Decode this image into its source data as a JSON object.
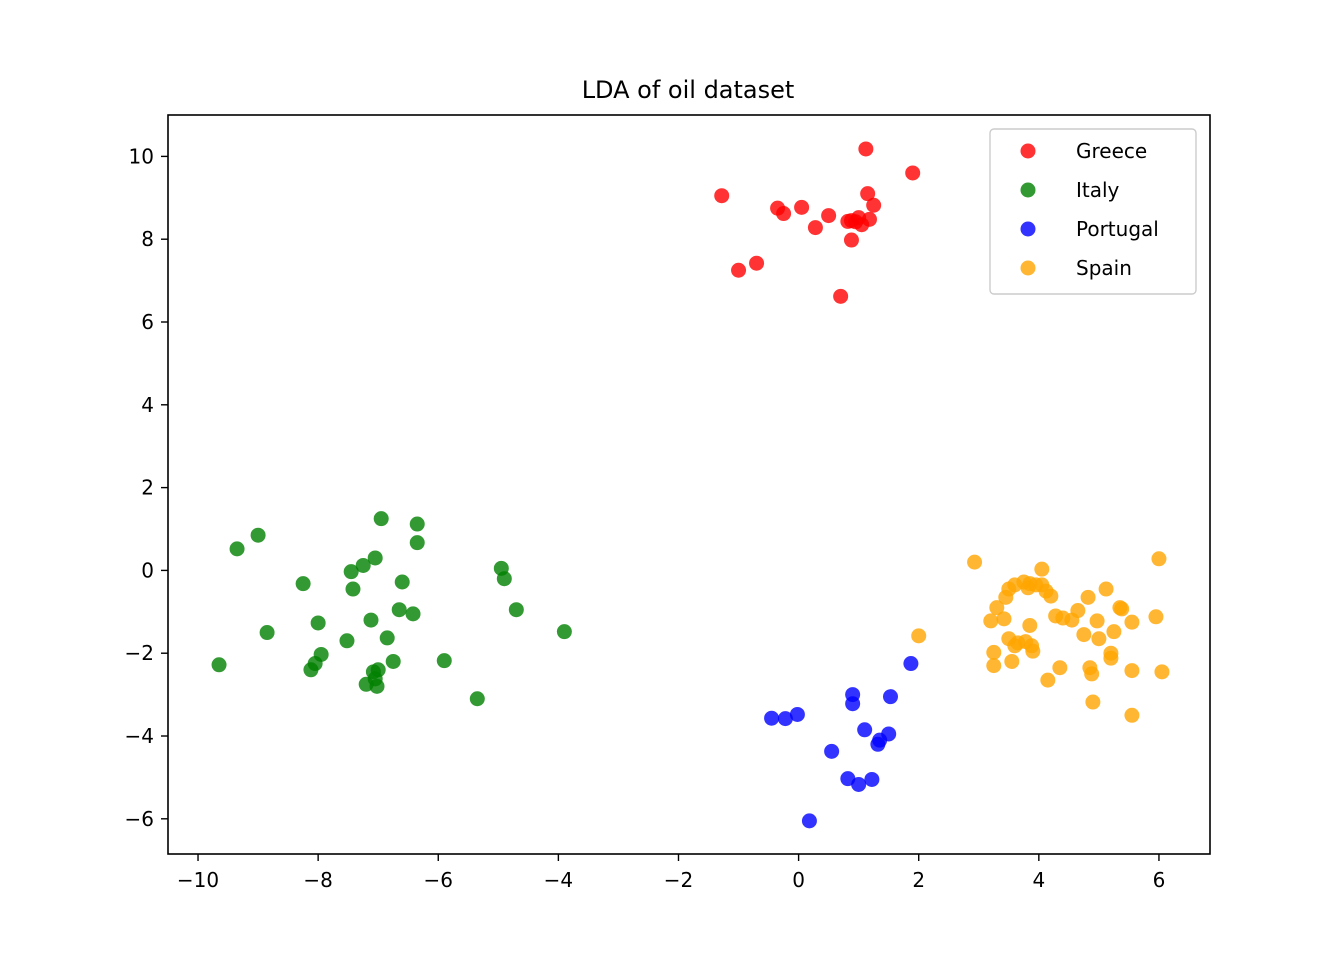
{
  "chart_data": {
    "type": "scatter",
    "title": "LDA of oil dataset",
    "xlabel": "",
    "ylabel": "",
    "xlim": [
      -10.5,
      6.85
    ],
    "ylim": [
      -6.85,
      11.0
    ],
    "xticks": [
      -10,
      -8,
      -6,
      -4,
      -2,
      0,
      2,
      4,
      6
    ],
    "yticks": [
      -6,
      -4,
      -2,
      0,
      2,
      4,
      6,
      8,
      10
    ],
    "xtick_labels": [
      "−10",
      "−8",
      "−6",
      "−4",
      "−2",
      "0",
      "2",
      "4",
      "6"
    ],
    "ytick_labels": [
      "−6",
      "−4",
      "−2",
      "0",
      "2",
      "4",
      "6",
      "8",
      "10"
    ],
    "grid": false,
    "legend_position": "top-right",
    "series": [
      {
        "name": "Greece",
        "color": "#ff0000",
        "points": [
          [
            1.12,
            10.18
          ],
          [
            1.9,
            9.6
          ],
          [
            -1.28,
            9.05
          ],
          [
            1.15,
            9.1
          ],
          [
            -0.35,
            8.75
          ],
          [
            -0.25,
            8.62
          ],
          [
            0.05,
            8.77
          ],
          [
            0.5,
            8.57
          ],
          [
            0.88,
            8.45
          ],
          [
            1.0,
            8.52
          ],
          [
            0.82,
            8.43
          ],
          [
            1.05,
            8.35
          ],
          [
            0.95,
            8.42
          ],
          [
            1.18,
            8.48
          ],
          [
            1.25,
            8.82
          ],
          [
            0.28,
            8.28
          ],
          [
            0.88,
            7.98
          ],
          [
            -0.7,
            7.42
          ],
          [
            -1.0,
            7.25
          ],
          [
            0.7,
            6.62
          ]
        ]
      },
      {
        "name": "Italy",
        "color": "#008000",
        "points": [
          [
            -6.95,
            1.25
          ],
          [
            -6.35,
            1.12
          ],
          [
            -9.0,
            0.85
          ],
          [
            -6.35,
            0.67
          ],
          [
            -9.35,
            0.52
          ],
          [
            -7.05,
            0.3
          ],
          [
            -7.25,
            0.12
          ],
          [
            -7.45,
            -0.03
          ],
          [
            -4.95,
            0.05
          ],
          [
            -4.9,
            -0.2
          ],
          [
            -6.6,
            -0.28
          ],
          [
            -8.25,
            -0.32
          ],
          [
            -7.42,
            -0.45
          ],
          [
            -6.65,
            -0.95
          ],
          [
            -4.7,
            -0.95
          ],
          [
            -6.42,
            -1.05
          ],
          [
            -7.12,
            -1.2
          ],
          [
            -8.0,
            -1.27
          ],
          [
            -8.85,
            -1.5
          ],
          [
            -3.9,
            -1.48
          ],
          [
            -7.52,
            -1.7
          ],
          [
            -6.85,
            -1.63
          ],
          [
            -7.95,
            -2.03
          ],
          [
            -8.05,
            -2.25
          ],
          [
            -5.9,
            -2.18
          ],
          [
            -6.75,
            -2.2
          ],
          [
            -9.65,
            -2.28
          ],
          [
            -7.0,
            -2.4
          ],
          [
            -8.12,
            -2.4
          ],
          [
            -7.08,
            -2.45
          ],
          [
            -7.05,
            -2.62
          ],
          [
            -7.2,
            -2.75
          ],
          [
            -7.02,
            -2.8
          ],
          [
            -5.35,
            -3.1
          ]
        ]
      },
      {
        "name": "Portugal",
        "color": "#0000ff",
        "points": [
          [
            1.87,
            -2.25
          ],
          [
            0.9,
            -3.0
          ],
          [
            1.53,
            -3.05
          ],
          [
            0.9,
            -3.22
          ],
          [
            -0.02,
            -3.48
          ],
          [
            -0.45,
            -3.57
          ],
          [
            -0.22,
            -3.58
          ],
          [
            1.1,
            -3.85
          ],
          [
            1.5,
            -3.95
          ],
          [
            1.35,
            -4.1
          ],
          [
            1.32,
            -4.2
          ],
          [
            0.55,
            -4.37
          ],
          [
            0.82,
            -5.03
          ],
          [
            1.22,
            -5.05
          ],
          [
            1.0,
            -5.17
          ],
          [
            0.18,
            -6.05
          ]
        ]
      },
      {
        "name": "Spain",
        "color": "#ffa500",
        "points": [
          [
            2.93,
            0.2
          ],
          [
            6.0,
            0.28
          ],
          [
            4.05,
            0.03
          ],
          [
            3.75,
            -0.28
          ],
          [
            3.85,
            -0.32
          ],
          [
            3.95,
            -0.35
          ],
          [
            3.6,
            -0.35
          ],
          [
            3.5,
            -0.45
          ],
          [
            3.82,
            -0.42
          ],
          [
            4.05,
            -0.35
          ],
          [
            4.12,
            -0.5
          ],
          [
            4.2,
            -0.62
          ],
          [
            3.45,
            -0.65
          ],
          [
            4.82,
            -0.65
          ],
          [
            5.12,
            -0.45
          ],
          [
            3.3,
            -0.9
          ],
          [
            4.65,
            -0.97
          ],
          [
            5.35,
            -0.9
          ],
          [
            5.38,
            -0.93
          ],
          [
            5.95,
            -1.12
          ],
          [
            4.28,
            -1.1
          ],
          [
            4.4,
            -1.15
          ],
          [
            4.55,
            -1.2
          ],
          [
            3.42,
            -1.17
          ],
          [
            3.2,
            -1.22
          ],
          [
            4.97,
            -1.22
          ],
          [
            5.55,
            -1.25
          ],
          [
            3.85,
            -1.33
          ],
          [
            4.75,
            -1.55
          ],
          [
            5.25,
            -1.48
          ],
          [
            3.5,
            -1.65
          ],
          [
            5.0,
            -1.65
          ],
          [
            2.0,
            -1.58
          ],
          [
            3.65,
            -1.75
          ],
          [
            3.78,
            -1.72
          ],
          [
            3.88,
            -1.82
          ],
          [
            3.6,
            -1.82
          ],
          [
            3.9,
            -1.95
          ],
          [
            3.25,
            -1.98
          ],
          [
            5.2,
            -2.0
          ],
          [
            5.2,
            -2.12
          ],
          [
            3.55,
            -2.2
          ],
          [
            3.25,
            -2.3
          ],
          [
            4.35,
            -2.35
          ],
          [
            4.85,
            -2.35
          ],
          [
            5.55,
            -2.42
          ],
          [
            6.05,
            -2.45
          ],
          [
            4.88,
            -2.5
          ],
          [
            4.15,
            -2.65
          ],
          [
            4.9,
            -3.18
          ],
          [
            5.55,
            -3.5
          ]
        ]
      }
    ]
  }
}
